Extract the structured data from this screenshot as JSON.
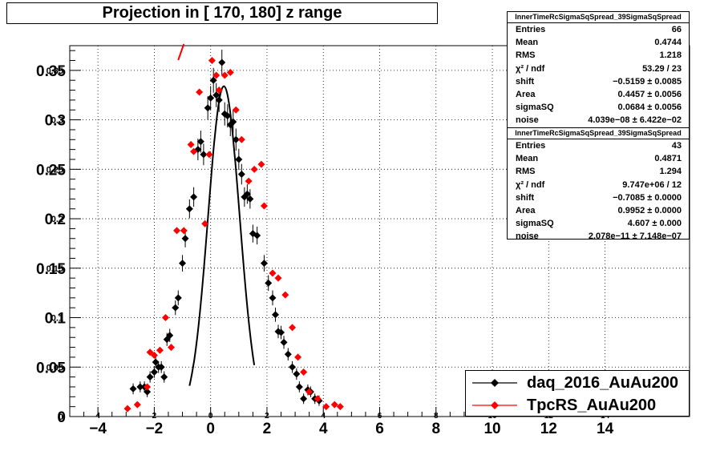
{
  "title": "Projection in [ 170, 180] z range",
  "stats_boxes": [
    {
      "header": "InnerTimeRcSigmaSqSpread_39SigmaSqSpread",
      "rows": [
        {
          "label": "Entries",
          "value": "66"
        },
        {
          "label": "Mean",
          "value": "0.4744"
        },
        {
          "label": "RMS",
          "value": "1.218"
        },
        {
          "label": "χ² / ndf",
          "value": "53.29 / 23"
        },
        {
          "label": "shift",
          "value": "−0.5159 ± 0.0085"
        },
        {
          "label": "Area",
          "value": "0.4457 ± 0.0056"
        },
        {
          "label": "sigmaSQ",
          "value": "0.0684 ± 0.0056"
        },
        {
          "label": "noise",
          "value": "4.039e−08 ± 6.422e−02"
        }
      ]
    },
    {
      "header": "InnerTimeRcSigmaSqSpread_39SigmaSqSpread",
      "rows": [
        {
          "label": "Entries",
          "value": "43"
        },
        {
          "label": "Mean",
          "value": "0.4871"
        },
        {
          "label": "RMS",
          "value": "1.294"
        },
        {
          "label": "χ² / ndf",
          "value": "9.747e+06 / 12"
        },
        {
          "label": "shift",
          "value": "−0.7085 ± 0.0000"
        },
        {
          "label": "Area",
          "value": "0.9952 ± 0.0000"
        },
        {
          "label": "sigmaSQ",
          "value": "4.607 ± 0.000"
        },
        {
          "label": "noise",
          "value": "2.078e−11 ± 7.148e−07"
        }
      ]
    }
  ],
  "legend": [
    {
      "label": "daq_2016_AuAu200",
      "color": "#000000"
    },
    {
      "label": "TpcRS_AuAu200",
      "color": "#ff0000"
    }
  ],
  "chart_data": {
    "type": "scatter",
    "title": "Projection in [ 170, 180] z range",
    "xlim": [
      -5,
      17
    ],
    "ylim": [
      0,
      0.375
    ],
    "x_ticks": [
      -4,
      -2,
      0,
      2,
      4,
      6,
      8,
      10,
      12,
      14
    ],
    "y_ticks": [
      0,
      0.05,
      0.1,
      0.15,
      0.2,
      0.25,
      0.3,
      0.35
    ],
    "x_tick_labels": [
      "−4",
      "−2",
      "0",
      "2",
      "4",
      "6",
      "8",
      "10",
      "12",
      "14"
    ],
    "y_tick_labels": [
      "0",
      "0.05",
      "0.1",
      "0.15",
      "0.2",
      "0.25",
      "0.3",
      "0.35"
    ],
    "secondary_x_tick_labels": [
      "4",
      "2",
      "0",
      "2",
      "4",
      "6",
      "8",
      "10",
      "12",
      "14"
    ],
    "secondary_y_tick_labels": [
      "0",
      "0.05",
      "0.1",
      "0.15",
      "0.2",
      "0.25",
      "0.3",
      "0.35"
    ],
    "grid": true,
    "legend_position": "bottom-right",
    "series": [
      {
        "name": "daq_2016_AuAu200",
        "color": "#000000",
        "marker": "diamond",
        "points": [
          [
            -2.75,
            0.028
          ],
          [
            -2.5,
            0.03
          ],
          [
            -2.35,
            0.03
          ],
          [
            -2.25,
            0.025
          ],
          [
            -2.15,
            0.04
          ],
          [
            -2.0,
            0.045
          ],
          [
            -1.95,
            0.055
          ],
          [
            -1.85,
            0.05
          ],
          [
            -1.75,
            0.05
          ],
          [
            -1.65,
            0.04
          ],
          [
            -1.55,
            0.078
          ],
          [
            -1.45,
            0.082
          ],
          [
            -1.25,
            0.11
          ],
          [
            -1.15,
            0.12
          ],
          [
            -1.0,
            0.155
          ],
          [
            -0.9,
            0.18
          ],
          [
            -0.75,
            0.21
          ],
          [
            -0.6,
            0.222
          ],
          [
            -0.45,
            0.27
          ],
          [
            -0.35,
            0.278
          ],
          [
            -0.25,
            0.265
          ],
          [
            -0.1,
            0.312
          ],
          [
            0.0,
            0.322
          ],
          [
            0.1,
            0.34
          ],
          [
            0.2,
            0.325
          ],
          [
            0.3,
            0.32
          ],
          [
            0.4,
            0.358
          ],
          [
            0.5,
            0.306
          ],
          [
            0.6,
            0.304
          ],
          [
            0.7,
            0.295
          ],
          [
            0.8,
            0.298
          ],
          [
            0.9,
            0.28
          ],
          [
            1.0,
            0.26
          ],
          [
            1.1,
            0.245
          ],
          [
            1.2,
            0.222
          ],
          [
            1.3,
            0.225
          ],
          [
            1.4,
            0.22
          ],
          [
            1.5,
            0.185
          ],
          [
            1.65,
            0.183
          ],
          [
            1.9,
            0.155
          ],
          [
            2.05,
            0.135
          ],
          [
            2.2,
            0.12
          ],
          [
            2.3,
            0.103
          ],
          [
            2.4,
            0.086
          ],
          [
            2.5,
            0.085
          ],
          [
            2.6,
            0.075
          ],
          [
            2.75,
            0.063
          ],
          [
            2.9,
            0.05
          ],
          [
            3.05,
            0.043
          ],
          [
            3.15,
            0.03
          ],
          [
            3.3,
            0.018
          ],
          [
            3.45,
            0.027
          ],
          [
            3.55,
            0.025
          ],
          [
            3.7,
            0.018
          ],
          [
            3.85,
            0.016
          ]
        ]
      },
      {
        "name": "TpcRS_AuAu200",
        "color": "#ff0000",
        "marker": "diamond",
        "points": [
          [
            -2.95,
            0.008
          ],
          [
            -2.6,
            0.012
          ],
          [
            -2.25,
            0.03
          ],
          [
            -2.15,
            0.065
          ],
          [
            -2.0,
            0.062
          ],
          [
            -1.8,
            0.067
          ],
          [
            -1.6,
            0.1
          ],
          [
            -1.4,
            0.07
          ],
          [
            -1.2,
            0.188
          ],
          [
            -0.95,
            0.188
          ],
          [
            -0.7,
            0.275
          ],
          [
            -0.6,
            0.268
          ],
          [
            -0.4,
            0.328
          ],
          [
            -0.2,
            0.195
          ],
          [
            -0.05,
            0.265
          ],
          [
            0.05,
            0.36
          ],
          [
            0.2,
            0.345
          ],
          [
            0.3,
            0.33
          ],
          [
            0.5,
            0.345
          ],
          [
            0.7,
            0.348
          ],
          [
            0.9,
            0.31
          ],
          [
            1.1,
            0.28
          ],
          [
            1.35,
            0.238
          ],
          [
            1.55,
            0.25
          ],
          [
            1.8,
            0.255
          ],
          [
            1.9,
            0.213
          ],
          [
            2.2,
            0.145
          ],
          [
            2.4,
            0.14
          ],
          [
            2.65,
            0.123
          ],
          [
            2.9,
            0.09
          ],
          [
            3.1,
            0.06
          ],
          [
            3.3,
            0.045
          ],
          [
            3.5,
            0.025
          ],
          [
            3.8,
            0.018
          ],
          [
            4.1,
            0.01
          ],
          [
            4.4,
            0.012
          ],
          [
            4.6,
            0.01
          ]
        ]
      }
    ],
    "fit_curve": {
      "shape": "gaussian",
      "color": "#000000",
      "x_range": [
        -0.75,
        1.55
      ],
      "peak_x": 0.47,
      "peak_y": 0.334,
      "sigma": 0.56
    },
    "red_curve_fragment": {
      "color": "#ff0000",
      "x_range": [
        -1.15,
        -0.95
      ]
    }
  }
}
